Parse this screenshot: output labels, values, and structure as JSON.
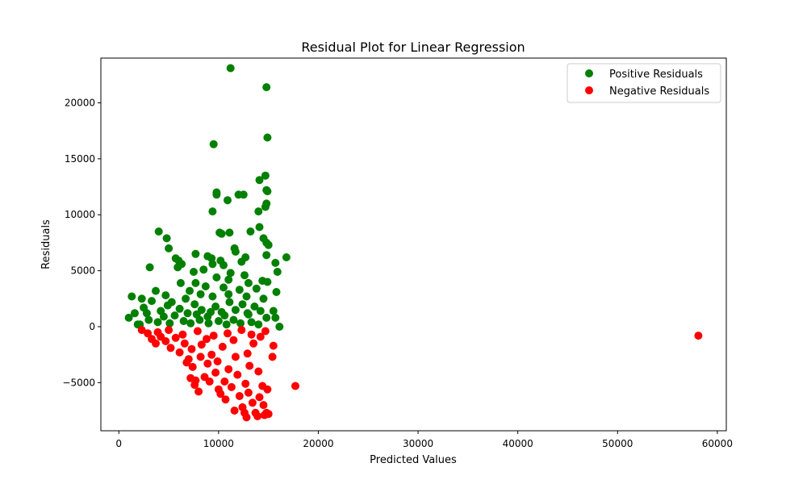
{
  "chart_data": {
    "type": "scatter",
    "title": "Residual Plot for Linear Regression",
    "xlabel": "Predicted Values",
    "ylabel": "Residuals",
    "xlim": [
      -1800,
      60900
    ],
    "ylim": [
      -9300,
      24000
    ],
    "xticks": [
      0,
      10000,
      20000,
      30000,
      40000,
      50000,
      60000
    ],
    "xtick_labels": [
      "0",
      "10000",
      "20000",
      "30000",
      "40000",
      "50000",
      "60000"
    ],
    "yticks": [
      -5000,
      0,
      5000,
      10000,
      15000,
      20000
    ],
    "ytick_labels": [
      "−5000",
      "0",
      "5000",
      "10000",
      "15000",
      "20000"
    ],
    "grid": false,
    "legend_position": "top-right",
    "series": [
      {
        "name": "Positive Residuals",
        "color": "#008000",
        "points": [
          [
            11200,
            23100
          ],
          [
            14800,
            21400
          ],
          [
            14900,
            16900
          ],
          [
            9500,
            16300
          ],
          [
            14700,
            13500
          ],
          [
            14100,
            13100
          ],
          [
            14800,
            12200
          ],
          [
            14900,
            12100
          ],
          [
            9800,
            12000
          ],
          [
            9800,
            11800
          ],
          [
            12000,
            11800
          ],
          [
            12500,
            11800
          ],
          [
            10900,
            11300
          ],
          [
            14800,
            11000
          ],
          [
            14700,
            10700
          ],
          [
            9400,
            10300
          ],
          [
            14000,
            10300
          ],
          [
            14100,
            8900
          ],
          [
            4000,
            8500
          ],
          [
            13200,
            8500
          ],
          [
            10100,
            8400
          ],
          [
            10300,
            8300
          ],
          [
            11100,
            8400
          ],
          [
            14500,
            7900
          ],
          [
            14800,
            7500
          ],
          [
            15000,
            7300
          ],
          [
            4800,
            7900
          ],
          [
            5000,
            7000
          ],
          [
            11600,
            7000
          ],
          [
            11700,
            6700
          ],
          [
            7700,
            6500
          ],
          [
            8900,
            6300
          ],
          [
            9300,
            6100
          ],
          [
            12700,
            6200
          ],
          [
            16800,
            6200
          ],
          [
            14800,
            6400
          ],
          [
            5700,
            6100
          ],
          [
            6000,
            5900
          ],
          [
            6300,
            5600
          ],
          [
            3100,
            5300
          ],
          [
            5900,
            5300
          ],
          [
            9400,
            5600
          ],
          [
            10200,
            5900
          ],
          [
            10500,
            5500
          ],
          [
            12300,
            5800
          ],
          [
            15700,
            5700
          ],
          [
            15900,
            4900
          ],
          [
            7500,
            4900
          ],
          [
            8500,
            5100
          ],
          [
            11200,
            4800
          ],
          [
            12600,
            4600
          ],
          [
            14400,
            4100
          ],
          [
            14900,
            4000
          ],
          [
            6200,
            3900
          ],
          [
            7700,
            3900
          ],
          [
            9800,
            4400
          ],
          [
            11000,
            4200
          ],
          [
            13000,
            3900
          ],
          [
            15800,
            3100
          ],
          [
            3700,
            3200
          ],
          [
            4700,
            2800
          ],
          [
            7100,
            3200
          ],
          [
            8700,
            3600
          ],
          [
            10500,
            3500
          ],
          [
            12100,
            3300
          ],
          [
            13800,
            3400
          ],
          [
            1300,
            2700
          ],
          [
            2300,
            2500
          ],
          [
            3300,
            2300
          ],
          [
            5300,
            2200
          ],
          [
            6700,
            2500
          ],
          [
            8200,
            2900
          ],
          [
            9400,
            2700
          ],
          [
            11000,
            2900
          ],
          [
            12800,
            2700
          ],
          [
            14500,
            2500
          ],
          [
            1000,
            800
          ],
          [
            1600,
            1200
          ],
          [
            1900,
            200
          ],
          [
            2500,
            1700
          ],
          [
            3000,
            600
          ],
          [
            4200,
            1400
          ],
          [
            4900,
            1900
          ],
          [
            5600,
            1000
          ],
          [
            6100,
            1600
          ],
          [
            6900,
            1200
          ],
          [
            7600,
            2000
          ],
          [
            8300,
            1500
          ],
          [
            8900,
            900
          ],
          [
            9700,
            1800
          ],
          [
            10300,
            1300
          ],
          [
            11100,
            2200
          ],
          [
            11700,
            1500
          ],
          [
            12400,
            2000
          ],
          [
            13000,
            1100
          ],
          [
            13600,
            1800
          ],
          [
            14200,
            1400
          ],
          [
            14800,
            800
          ],
          [
            15500,
            1400
          ],
          [
            15700,
            800
          ],
          [
            16100,
            0
          ],
          [
            2100,
            200
          ],
          [
            3900,
            400
          ],
          [
            5100,
            300
          ],
          [
            6500,
            500
          ],
          [
            7200,
            300
          ],
          [
            8100,
            600
          ],
          [
            9000,
            300
          ],
          [
            10000,
            500
          ],
          [
            10800,
            200
          ],
          [
            11500,
            600
          ],
          [
            12200,
            300
          ],
          [
            13300,
            400
          ],
          [
            14000,
            200
          ],
          [
            2800,
            1200
          ],
          [
            4500,
            900
          ],
          [
            7800,
            1100
          ],
          [
            9200,
            1300
          ],
          [
            10600,
            1000
          ],
          [
            12900,
            1200
          ]
        ]
      },
      {
        "name": "Negative Residuals",
        "color": "#ff0000",
        "points": [
          [
            58100,
            -800
          ],
          [
            17700,
            -5300
          ],
          [
            2300,
            -300
          ],
          [
            2900,
            -600
          ],
          [
            3300,
            -1100
          ],
          [
            3700,
            -1500
          ],
          [
            4200,
            -900
          ],
          [
            4700,
            -1300
          ],
          [
            5200,
            -1900
          ],
          [
            5700,
            -1000
          ],
          [
            6100,
            -2300
          ],
          [
            6600,
            -1500
          ],
          [
            7000,
            -2900
          ],
          [
            7400,
            -3600
          ],
          [
            7700,
            -4800
          ],
          [
            8000,
            -5800
          ],
          [
            7200,
            -4600
          ],
          [
            7600,
            -5200
          ],
          [
            8600,
            -4500
          ],
          [
            8900,
            -3300
          ],
          [
            9300,
            -2500
          ],
          [
            9700,
            -4100
          ],
          [
            10000,
            -5600
          ],
          [
            10200,
            -6000
          ],
          [
            10600,
            -4900
          ],
          [
            11000,
            -3800
          ],
          [
            11300,
            -5400
          ],
          [
            11700,
            -2700
          ],
          [
            12100,
            -6200
          ],
          [
            12400,
            -7200
          ],
          [
            12600,
            -7700
          ],
          [
            13000,
            -5900
          ],
          [
            13400,
            -6800
          ],
          [
            13700,
            -7700
          ],
          [
            14100,
            -6300
          ],
          [
            14500,
            -7000
          ],
          [
            14800,
            -7700
          ],
          [
            14400,
            -5300
          ],
          [
            14900,
            -5600
          ],
          [
            15400,
            -2700
          ],
          [
            15500,
            -1700
          ],
          [
            8300,
            -1600
          ],
          [
            9500,
            -800
          ],
          [
            10400,
            -1800
          ],
          [
            11500,
            -1200
          ],
          [
            12900,
            -2400
          ],
          [
            13500,
            -1500
          ],
          [
            14200,
            -900
          ],
          [
            3900,
            -500
          ],
          [
            5000,
            -300
          ],
          [
            6400,
            -700
          ],
          [
            7900,
            -400
          ],
          [
            8800,
            -1100
          ],
          [
            10900,
            -600
          ],
          [
            12300,
            -300
          ],
          [
            13300,
            -700
          ],
          [
            14700,
            -400
          ],
          [
            9900,
            -3100
          ],
          [
            11900,
            -4300
          ],
          [
            13100,
            -3500
          ],
          [
            12700,
            -5100
          ],
          [
            14000,
            -4000
          ],
          [
            6800,
            -3200
          ],
          [
            7300,
            -2000
          ],
          [
            8200,
            -2700
          ],
          [
            9100,
            -4900
          ],
          [
            10700,
            -6500
          ],
          [
            11600,
            -7500
          ],
          [
            12800,
            -8100
          ],
          [
            13900,
            -8000
          ],
          [
            14600,
            -7900
          ],
          [
            15000,
            -7800
          ]
        ]
      }
    ]
  }
}
